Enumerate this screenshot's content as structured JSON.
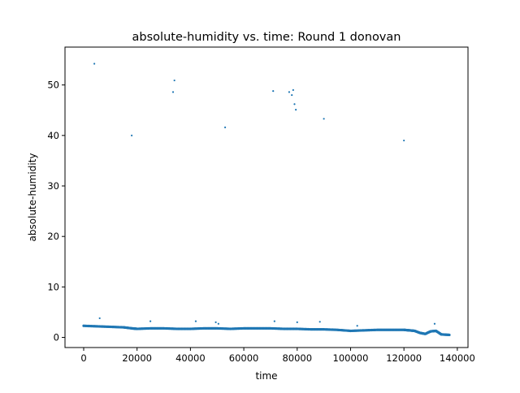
{
  "chart_data": {
    "type": "scatter",
    "title": "absolute-humidity vs. time: Round 1 donovan",
    "xlabel": "time",
    "ylabel": "absolute-humidity",
    "xlim": [
      -7000,
      144000
    ],
    "ylim": [
      -2,
      57.5
    ],
    "xticks": [
      0,
      20000,
      40000,
      60000,
      80000,
      100000,
      120000,
      140000
    ],
    "xtick_labels": [
      "0",
      "20000",
      "40000",
      "60000",
      "80000",
      "100000",
      "120000",
      "140000"
    ],
    "yticks": [
      0,
      10,
      20,
      30,
      40,
      50
    ],
    "ytick_labels": [
      "0",
      "10",
      "20",
      "30",
      "40",
      "50"
    ],
    "grid": false,
    "legend": "none",
    "marker_color": "#1f77b4",
    "series": [
      {
        "baseline_trend": {
          "x": [
            0,
            5000,
            10000,
            15000,
            18000,
            20000,
            25000,
            30000,
            35000,
            40000,
            45000,
            50000,
            55000,
            60000,
            65000,
            70000,
            75000,
            80000,
            85000,
            90000,
            95000,
            100000,
            105000,
            110000,
            115000,
            120000,
            122000,
            124000,
            126000,
            128000,
            130000,
            132000,
            134000,
            137000
          ],
          "y": [
            2.3,
            2.2,
            2.1,
            2.0,
            1.8,
            1.7,
            1.8,
            1.8,
            1.7,
            1.7,
            1.8,
            1.8,
            1.7,
            1.8,
            1.8,
            1.8,
            1.7,
            1.7,
            1.6,
            1.6,
            1.5,
            1.3,
            1.4,
            1.5,
            1.5,
            1.5,
            1.4,
            1.3,
            0.9,
            0.7,
            1.2,
            1.3,
            0.6,
            0.5
          ]
        },
        "outliers": {
          "x": [
            4000,
            6000,
            18000,
            25000,
            33500,
            34000,
            42000,
            49500,
            50500,
            53000,
            71000,
            71500,
            77000,
            78000,
            78500,
            79000,
            79500,
            80000,
            88500,
            90000,
            102500,
            120000,
            131500
          ],
          "y": [
            54.2,
            3.8,
            40.0,
            3.2,
            48.6,
            50.9,
            3.2,
            3.0,
            2.7,
            41.6,
            48.8,
            3.2,
            48.6,
            48.0,
            49.0,
            46.2,
            45.1,
            3.0,
            3.1,
            43.3,
            2.3,
            39.0,
            2.7
          ]
        }
      }
    ]
  }
}
